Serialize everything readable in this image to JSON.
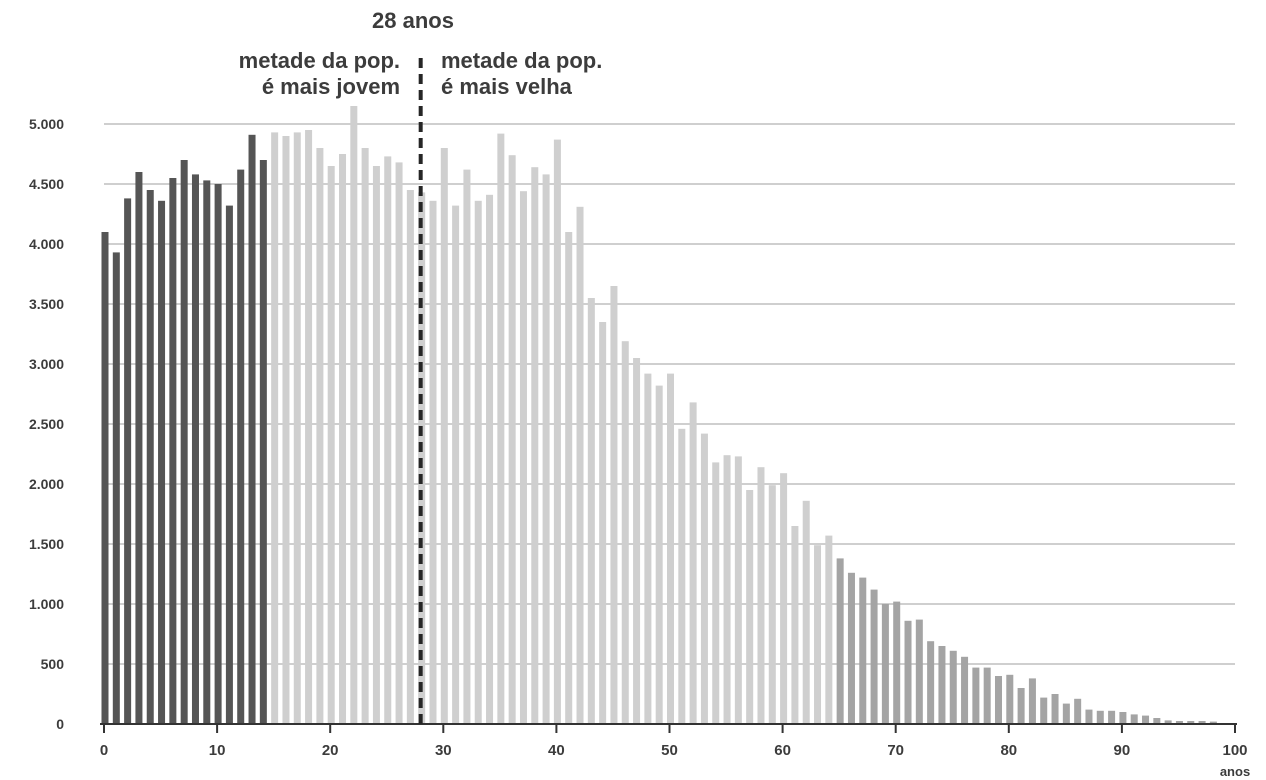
{
  "chart_data": {
    "type": "bar",
    "xlabel": "anos",
    "ylabel": "",
    "xlim": [
      0,
      100
    ],
    "ylim": [
      0,
      5000
    ],
    "grid": true,
    "x_ticks": [
      0,
      10,
      20,
      30,
      40,
      50,
      60,
      70,
      80,
      90,
      100
    ],
    "y_ticks": [
      0,
      500,
      1000,
      1500,
      2000,
      2500,
      3000,
      3500,
      4000,
      4500,
      5000
    ],
    "y_tick_labels": [
      "0",
      "500",
      "1.000",
      "1.500",
      "2.000",
      "2.500",
      "3.000",
      "3.500",
      "4.000",
      "4.500",
      "5.000"
    ],
    "x": [
      0,
      1,
      2,
      3,
      4,
      5,
      6,
      7,
      8,
      9,
      10,
      11,
      12,
      13,
      14,
      15,
      16,
      17,
      18,
      19,
      20,
      21,
      22,
      23,
      24,
      25,
      26,
      27,
      28,
      29,
      30,
      31,
      32,
      33,
      34,
      35,
      36,
      37,
      38,
      39,
      40,
      41,
      42,
      43,
      44,
      45,
      46,
      47,
      48,
      49,
      50,
      51,
      52,
      53,
      54,
      55,
      56,
      57,
      58,
      59,
      60,
      61,
      62,
      63,
      64,
      65,
      66,
      67,
      68,
      69,
      70,
      71,
      72,
      73,
      74,
      75,
      76,
      77,
      78,
      79,
      80,
      81,
      82,
      83,
      84,
      85,
      86,
      87,
      88,
      89,
      90,
      91,
      92,
      93,
      94,
      95,
      96,
      97,
      98
    ],
    "values": [
      4100,
      3930,
      4380,
      4600,
      4450,
      4360,
      4550,
      4700,
      4580,
      4530,
      4500,
      4320,
      4620,
      4910,
      4700,
      4930,
      4900,
      4930,
      4950,
      4800,
      4650,
      4750,
      5150,
      4800,
      4650,
      4730,
      4680,
      4450,
      4430,
      4360,
      4800,
      4320,
      4620,
      4360,
      4410,
      4920,
      4740,
      4440,
      4640,
      4580,
      4870,
      4100,
      4310,
      3550,
      3350,
      3650,
      3190,
      3050,
      2920,
      2820,
      2920,
      2460,
      2680,
      2420,
      2180,
      2240,
      2230,
      1950,
      2140,
      1990,
      2090,
      1650,
      1860,
      1490,
      1570,
      1380,
      1260,
      1220,
      1120,
      1000,
      1020,
      860,
      870,
      690,
      650,
      610,
      560,
      470,
      470,
      400,
      410,
      300,
      380,
      220,
      250,
      170,
      210,
      120,
      110,
      110,
      100,
      80,
      70,
      50,
      30,
      25,
      25,
      25,
      20
    ],
    "median_age": 28,
    "segments": [
      {
        "from": 0,
        "to": 14,
        "color": "#555555"
      },
      {
        "from": 15,
        "to": 64,
        "color": "#cfcfcf"
      },
      {
        "from": 65,
        "to": 98,
        "color": "#a4a4a4"
      }
    ],
    "annotations": {
      "median_label": "28 anos",
      "left_line1": "metade da pop.",
      "left_line2": "é mais jovem",
      "right_line1": "metade da pop.",
      "right_line2": "é mais velha"
    },
    "colors": {
      "grid": "#bfbfbf",
      "axis": "#333333",
      "median_line": "#262626",
      "text": "#3c3c3c"
    }
  }
}
